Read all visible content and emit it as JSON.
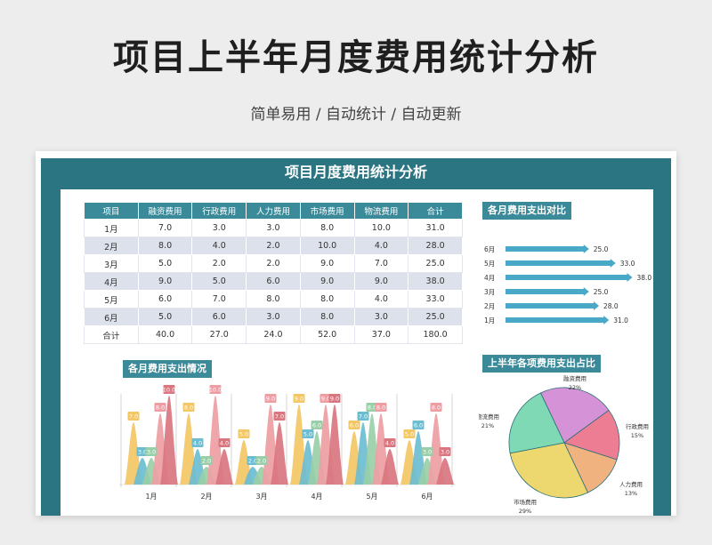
{
  "page": {
    "title": "项目上半年月度费用统计分析",
    "subtitle": "简单易用 / 自动统计 / 自动更新",
    "sheet_title": "项目月度费用统计分析"
  },
  "table": {
    "headers": [
      "项目",
      "融资费用",
      "行政费用",
      "人力费用",
      "市场费用",
      "物流费用",
      "合计"
    ],
    "rows": [
      [
        "1月",
        "7.0",
        "3.0",
        "3.0",
        "8.0",
        "10.0",
        "31.0"
      ],
      [
        "2月",
        "8.0",
        "4.0",
        "2.0",
        "10.0",
        "4.0",
        "28.0"
      ],
      [
        "3月",
        "5.0",
        "2.0",
        "2.0",
        "9.0",
        "7.0",
        "25.0"
      ],
      [
        "4月",
        "9.0",
        "5.0",
        "6.0",
        "9.0",
        "9.0",
        "38.0"
      ],
      [
        "5月",
        "6.0",
        "7.0",
        "8.0",
        "8.0",
        "4.0",
        "33.0"
      ],
      [
        "6月",
        "5.0",
        "6.0",
        "3.0",
        "8.0",
        "3.0",
        "25.0"
      ]
    ],
    "total": [
      "合计",
      "40.0",
      "27.0",
      "24.0",
      "52.0",
      "37.0",
      "180.0"
    ]
  },
  "sections": {
    "monthly_compare": "各月费用支出对比",
    "monthly_detail": "各月费用支出情况",
    "category_share": "上半年各项费用支出占比"
  },
  "colors": {
    "teal": "#2b7582",
    "header": "#3a8a99",
    "bar": "#4aa9c6",
    "series": [
      "#f3c764",
      "#6bbdd1",
      "#99cfa8",
      "#ee9ea3",
      "#d97680"
    ]
  },
  "chart_data": [
    {
      "type": "bar",
      "orientation": "horizontal",
      "title": "各月费用支出对比",
      "categories": [
        "6月",
        "5月",
        "4月",
        "3月",
        "2月",
        "1月"
      ],
      "values": [
        25.0,
        33.0,
        38.0,
        25.0,
        28.0,
        31.0
      ],
      "labels": [
        "25.0",
        "33.0",
        "38.0",
        "25.0",
        "28.0",
        "31.0"
      ],
      "xlim": [
        0,
        40
      ]
    },
    {
      "type": "area",
      "title": "各月费用支出情况",
      "categories": [
        "1月",
        "2月",
        "3月",
        "4月",
        "5月",
        "6月"
      ],
      "series": [
        {
          "values": [
            7.0,
            8.0,
            5.0,
            9.0,
            6.0,
            5.0
          ]
        },
        {
          "values": [
            3.0,
            4.0,
            2.0,
            5.0,
            7.0,
            6.0
          ]
        },
        {
          "values": [
            3.0,
            2.0,
            2.0,
            6.0,
            8.0,
            3.0
          ]
        },
        {
          "values": [
            8.0,
            10.0,
            9.0,
            9.0,
            8.0,
            8.0
          ]
        },
        {
          "values": [
            10.0,
            4.0,
            7.0,
            9.0,
            4.0,
            3.0
          ]
        }
      ],
      "ylim": [
        0,
        11
      ]
    },
    {
      "type": "pie",
      "title": "上半年各项费用支出占比",
      "slices": [
        {
          "name": "融资费用",
          "percent": "22%",
          "value": 22,
          "color": "#d692d6"
        },
        {
          "name": "行政费用",
          "percent": "15%",
          "value": 15,
          "color": "#ec7d93"
        },
        {
          "name": "人力费用",
          "percent": "13%",
          "value": 13,
          "color": "#f0b27f"
        },
        {
          "name": "市场费用",
          "percent": "29%",
          "value": 29,
          "color": "#ecd86e"
        },
        {
          "name": "物流费用",
          "percent": "21%",
          "value": 21,
          "color": "#7fd9b4"
        }
      ]
    }
  ]
}
